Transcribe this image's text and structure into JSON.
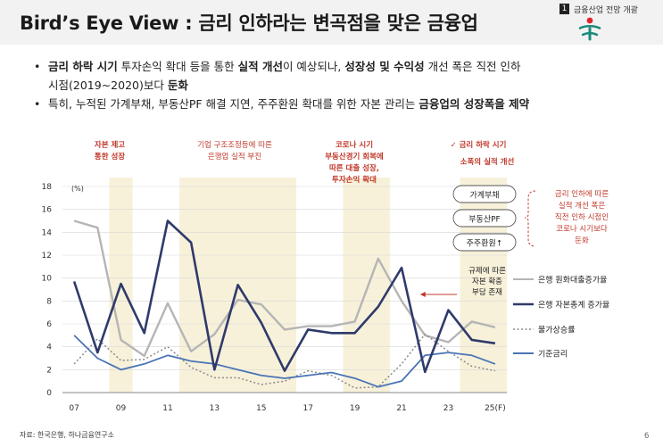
{
  "header": {
    "title": "Bird’s Eye View : 금리 인하라는 변곡점을 맞은 금융업",
    "section_number": "1",
    "section_label": "금융산업 전망 개괄"
  },
  "bullets": {
    "b1_part1": "금리 하락 시기",
    "b1_part2": " 투자손익 확대 등을 통한 ",
    "b1_part3": "실적 개선",
    "b1_part4": "이 예상되나, ",
    "b1_part5": "성장성 및 수익성",
    "b1_part6": " 개선 폭은 직전 인하",
    "b1_line2_part1": "시점(2019~2020)보다 ",
    "b1_line2_part2": "둔화",
    "b2_part1": "특히, 누적된 가계부채, 부동산PF 해결 지연, 주주환원 확대를 위한 자본 관리는 ",
    "b2_part2": "금융업의 성장폭을 제약"
  },
  "annotations": {
    "p1": [
      "자본 제고",
      "통한 성장"
    ],
    "p2": [
      "기업 구조조정등에 따른",
      "은행업 실적 부진"
    ],
    "p3": [
      "코로나 시기",
      "부동산경기 회복에",
      "따른 대출 성장,",
      "투자손익 확대"
    ],
    "p4": [
      "✓ 금리 하락 시기",
      "소폭의 실적 개선"
    ],
    "pills": [
      "가계부채",
      "부동산PF",
      "주주환원↑"
    ],
    "side_note": [
      "금리 인하에 따른",
      "실적 개선 폭은",
      "직전 인하 시점인",
      "코로나 시기보다",
      "둔화"
    ],
    "reg_note": [
      "규제에 따른",
      "자본 확충",
      "부담 존재"
    ]
  },
  "chart_data": {
    "type": "line",
    "title": "",
    "xlabel": "",
    "ylabel": "(%)",
    "ylim": [
      0,
      18
    ],
    "yticks": [
      0,
      2,
      4,
      6,
      8,
      10,
      12,
      14,
      16,
      18
    ],
    "x": [
      2007,
      2008,
      2009,
      2010,
      2011,
      2012,
      2013,
      2014,
      2015,
      2016,
      2017,
      2018,
      2019,
      2020,
      2021,
      2022,
      2023,
      2024,
      2025
    ],
    "xlim": [
      2006.5,
      2025.5
    ],
    "x_tick_values": [
      2007,
      2009,
      2011,
      2013,
      2015,
      2017,
      2019,
      2021,
      2023,
      2025
    ],
    "x_tick_labels": [
      "07",
      "09",
      "11",
      "13",
      "15",
      "17",
      "19",
      "21",
      "23",
      "25(F)"
    ],
    "shaded_periods": [
      [
        2008.5,
        2009.5
      ],
      [
        2011.5,
        2016.5
      ],
      [
        2018.5,
        2020.5
      ],
      [
        2023.5,
        2025.5
      ]
    ],
    "series": [
      {
        "name": "은행 원화대출증가율",
        "color": "#b5b5b5",
        "style": "solid",
        "values": [
          15.0,
          14.4,
          4.6,
          3.2,
          7.8,
          3.6,
          5.1,
          8.1,
          7.7,
          5.5,
          5.8,
          5.8,
          6.2,
          11.7,
          8.0,
          5.0,
          4.4,
          6.2,
          5.7
        ]
      },
      {
        "name": "은행 자본총계 증가율",
        "color": "#2f3a6b",
        "style": "solid",
        "values": [
          9.7,
          3.5,
          9.5,
          5.2,
          15.0,
          13.1,
          2.0,
          9.4,
          6.1,
          1.9,
          5.5,
          5.2,
          5.2,
          7.5,
          10.9,
          1.8,
          7.2,
          4.6,
          4.3
        ]
      },
      {
        "name": "물가상승률",
        "color": "#8a8a8a",
        "style": "dotted",
        "values": [
          2.5,
          4.7,
          2.8,
          2.9,
          4.0,
          2.2,
          1.3,
          1.3,
          0.7,
          1.0,
          1.9,
          1.5,
          0.4,
          0.5,
          2.5,
          5.1,
          3.6,
          2.3,
          1.9
        ]
      },
      {
        "name": "기준금리",
        "color": "#4a74b5",
        "style": "solid",
        "values": [
          5.0,
          3.0,
          2.0,
          2.5,
          3.25,
          2.75,
          2.5,
          2.0,
          1.5,
          1.25,
          1.5,
          1.75,
          1.25,
          0.5,
          1.0,
          3.25,
          3.5,
          3.25,
          2.5
        ]
      }
    ]
  },
  "footer": {
    "source": "자료: 한국은행, 하나금융연구소",
    "page": "6"
  }
}
